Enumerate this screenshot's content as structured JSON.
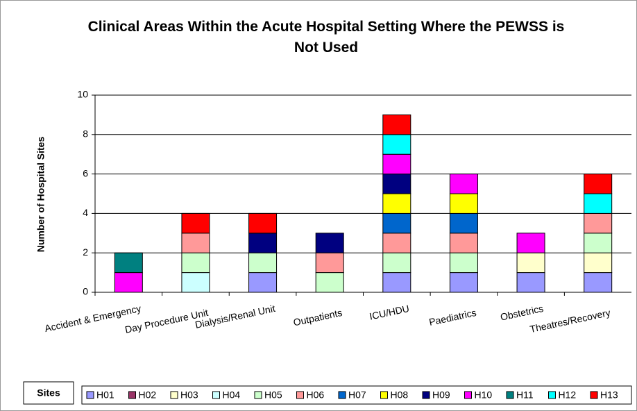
{
  "chart_data": {
    "type": "stacked_bar",
    "title": "Clinical Areas Within the Acute Hospital Setting Where the PEWSS is Not Used",
    "y_label": "Number of Hospital Sites",
    "legend_title": "Sites",
    "categories": [
      "Accident & Emergency",
      "Day Procedure Unit",
      "Dialysis/Renal Unit",
      "Outpatients",
      "ICU/HDU",
      "Paediatrics",
      "Obstetrics",
      "Theatres/Recovery"
    ],
    "series": [
      {
        "name": "H01",
        "color": "#9999ff",
        "values": [
          0,
          0,
          1,
          0,
          1,
          1,
          1,
          1
        ]
      },
      {
        "name": "H02",
        "color": "#993366",
        "values": [
          0,
          0,
          0,
          0,
          0,
          0,
          0,
          0
        ]
      },
      {
        "name": "H03",
        "color": "#ffffcc",
        "values": [
          0,
          0,
          0,
          0,
          0,
          0,
          1,
          1
        ]
      },
      {
        "name": "H04",
        "color": "#ccffff",
        "values": [
          0,
          1,
          0,
          0,
          0,
          0,
          0,
          0
        ]
      },
      {
        "name": "H05",
        "color": "#ccffcc",
        "values": [
          0,
          1,
          1,
          1,
          1,
          1,
          0,
          1
        ]
      },
      {
        "name": "H06",
        "color": "#ff9999",
        "values": [
          0,
          1,
          0,
          1,
          1,
          1,
          0,
          1
        ]
      },
      {
        "name": "H07",
        "color": "#0066cc",
        "values": [
          0,
          0,
          0,
          0,
          1,
          1,
          0,
          0
        ]
      },
      {
        "name": "H08",
        "color": "#ffff00",
        "values": [
          0,
          0,
          0,
          0,
          1,
          1,
          0,
          0
        ]
      },
      {
        "name": "H09",
        "color": "#000080",
        "values": [
          0,
          0,
          1,
          1,
          1,
          0,
          0,
          0
        ]
      },
      {
        "name": "H10",
        "color": "#ff00ff",
        "values": [
          1,
          0,
          0,
          0,
          1,
          1,
          1,
          0
        ]
      },
      {
        "name": "H11",
        "color": "#008080",
        "values": [
          1,
          0,
          0,
          0,
          0,
          0,
          0,
          0
        ]
      },
      {
        "name": "H12",
        "color": "#00ffff",
        "values": [
          0,
          0,
          0,
          0,
          1,
          0,
          0,
          1
        ]
      },
      {
        "name": "H13",
        "color": "#ff0000",
        "values": [
          0,
          1,
          1,
          0,
          1,
          0,
          0,
          1
        ]
      }
    ],
    "ylim": [
      0,
      10
    ],
    "yticks": [
      0,
      2,
      4,
      6,
      8,
      10
    ],
    "grid": true
  }
}
